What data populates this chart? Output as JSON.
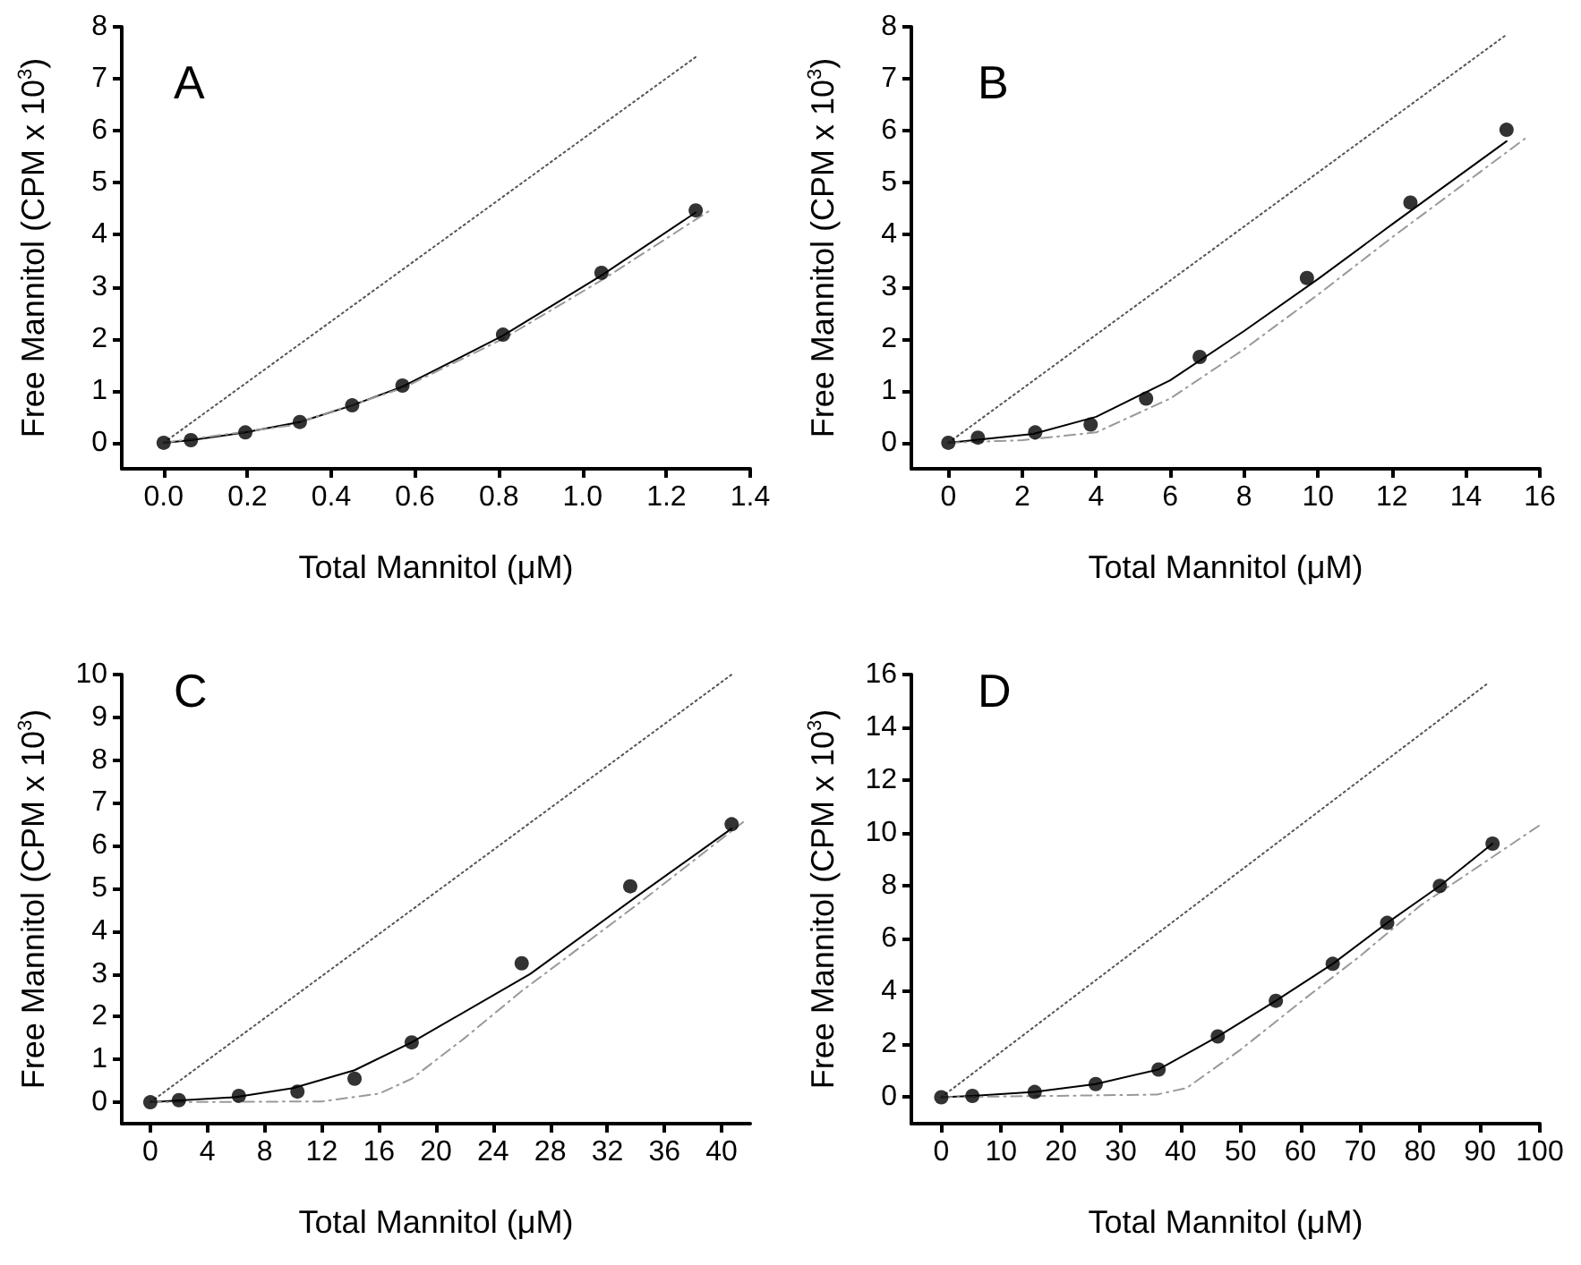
{
  "chart_data": [
    {
      "type": "scatter",
      "title": "A",
      "xlabel": "Total Mannitol (μM)",
      "ylabel": "Free Mannitol (CPM x 10$^{3}$)",
      "xlim": [
        -0.1,
        1.4
      ],
      "ylim": [
        -0.5,
        8
      ],
      "xticks": [
        {
          "value": 0,
          "label": "0.0"
        },
        0.2,
        0.4,
        0.6,
        0.8,
        {
          "value": 1,
          "label": "1.0"
        },
        1.2,
        1.4
      ],
      "yticks": [
        0,
        1,
        2,
        3,
        4,
        5,
        6,
        7,
        8
      ],
      "grid": false,
      "series": [
        {
          "marker": "circle",
          "color": "#000000",
          "x": [
            0,
            0.065,
            0.195,
            0.325,
            0.45,
            0.57,
            0.81,
            1.045,
            1.27
          ],
          "values": [
            0,
            0.05,
            0.2,
            0.4,
            0.72,
            1.1,
            2.08,
            3.27,
            4.47
          ]
        },
        {
          "type": "line",
          "line_style": "solid",
          "color": "#000000",
          "x": [
            0,
            0.065,
            0.195,
            0.325,
            0.45,
            0.57,
            0.81,
            1.045,
            1.27
          ],
          "values": [
            0,
            0.05,
            0.2,
            0.4,
            0.72,
            1.08,
            2.06,
            3.22,
            4.43
          ]
        },
        {
          "type": "line",
          "line_style": "dotted",
          "color": "#555555",
          "x": [
            0,
            1.27
          ],
          "values": [
            0,
            7.42
          ]
        },
        {
          "type": "line",
          "line_style": "dashed",
          "color": "#999999",
          "x": [
            0,
            0.3,
            0.57,
            0.81,
            1.05,
            1.3
          ],
          "values": [
            0,
            0.33,
            1.05,
            2.0,
            3.15,
            4.45
          ]
        }
      ]
    },
    {
      "type": "scatter",
      "title": "B",
      "xlabel": "Total Mannitol (μM)",
      "ylabel": "Free Mannitol (CPM x 10$^{3}$)",
      "xlim": [
        -1,
        16
      ],
      "ylim": [
        -0.5,
        8
      ],
      "xticks": [
        0,
        2,
        4,
        6,
        8,
        10,
        12,
        14,
        16
      ],
      "yticks": [
        0,
        1,
        2,
        3,
        4,
        5,
        6,
        7,
        8
      ],
      "grid": false,
      "series": [
        {
          "marker": "circle",
          "color": "#000000",
          "x": [
            0,
            0.8,
            2.35,
            3.85,
            5.35,
            6.8,
            9.7,
            12.5,
            15.1
          ],
          "values": [
            0,
            0.1,
            0.2,
            0.35,
            0.85,
            1.65,
            3.17,
            4.62,
            6.02
          ]
        },
        {
          "type": "line",
          "line_style": "solid",
          "color": "#000000",
          "x": [
            0,
            2.3,
            4,
            6,
            8,
            10,
            12,
            15.1
          ],
          "values": [
            0,
            0.17,
            0.5,
            1.2,
            2.15,
            3.15,
            4.2,
            5.8
          ]
        },
        {
          "type": "line",
          "line_style": "dotted",
          "color": "#555555",
          "x": [
            0,
            15.1
          ],
          "values": [
            0,
            7.85
          ]
        },
        {
          "type": "line",
          "line_style": "dashed",
          "color": "#999999",
          "x": [
            0,
            2,
            4,
            6,
            8,
            10,
            12,
            15.6
          ],
          "values": [
            0,
            0.05,
            0.2,
            0.85,
            1.8,
            2.85,
            3.95,
            5.85
          ]
        }
      ]
    },
    {
      "type": "scatter",
      "title": "C",
      "xlabel": "Total Mannitol (μM)",
      "ylabel": "Free Mannitol (CPM x 10$^{3}$)",
      "xlim": [
        -2,
        42
      ],
      "ylim": [
        -0.5,
        10
      ],
      "xticks": [
        0,
        4,
        8,
        12,
        16,
        20,
        24,
        28,
        32,
        36,
        40
      ],
      "yticks": [
        0,
        1,
        2,
        3,
        4,
        5,
        6,
        7,
        8,
        9,
        10
      ],
      "grid": false,
      "series": [
        {
          "marker": "circle",
          "color": "#000000",
          "x": [
            0,
            2,
            6.2,
            10.3,
            14.3,
            18.3,
            26,
            33.6,
            40.7
          ],
          "values": [
            0,
            0.05,
            0.15,
            0.25,
            0.55,
            1.4,
            3.25,
            5.05,
            6.5
          ]
        },
        {
          "type": "line",
          "line_style": "solid",
          "color": "#000000",
          "x": [
            0,
            6,
            10,
            14.3,
            18.3,
            26.6,
            34,
            40.7
          ],
          "values": [
            0,
            0.12,
            0.33,
            0.75,
            1.4,
            3.0,
            4.8,
            6.4
          ]
        },
        {
          "type": "line",
          "line_style": "dotted",
          "color": "#555555",
          "x": [
            0,
            40.7
          ],
          "values": [
            0,
            10
          ]
        },
        {
          "type": "line",
          "line_style": "dashed",
          "color": "#999999",
          "x": [
            0,
            12,
            16,
            18.3,
            22,
            26,
            34,
            41.5
          ],
          "values": [
            0,
            0.02,
            0.2,
            0.55,
            1.5,
            2.6,
            4.6,
            6.55
          ]
        }
      ]
    },
    {
      "type": "scatter",
      "title": "D",
      "xlabel": "Total Mannitol (μM)",
      "ylabel": "Free Mannitol (CPM x 10$^{3}$)",
      "xlim": [
        -5,
        100
      ],
      "ylim": [
        -1,
        16
      ],
      "xticks": [
        0,
        10,
        20,
        30,
        40,
        50,
        60,
        70,
        80,
        90,
        100
      ],
      "yticks": [
        0,
        2,
        4,
        6,
        8,
        10,
        12,
        14,
        16
      ],
      "grid": false,
      "series": [
        {
          "marker": "circle",
          "color": "#000000",
          "x": [
            0,
            5.2,
            15.6,
            25.8,
            36.3,
            46.2,
            55.9,
            65.4,
            74.5,
            83.3,
            92.1
          ],
          "values": [
            0,
            0.05,
            0.2,
            0.5,
            1.05,
            2.3,
            3.65,
            5.05,
            6.6,
            8.0,
            9.6
          ]
        },
        {
          "type": "line",
          "line_style": "solid",
          "color": "#000000",
          "x": [
            0,
            5.2,
            15.6,
            25.8,
            36.3,
            46.2,
            55.9,
            65.4,
            74.5,
            83.3,
            92.1
          ],
          "values": [
            0,
            0.05,
            0.2,
            0.5,
            1.05,
            2.3,
            3.65,
            5.05,
            6.6,
            8.0,
            9.6
          ]
        },
        {
          "type": "line",
          "line_style": "dotted",
          "color": "#555555",
          "x": [
            0,
            91.5
          ],
          "values": [
            0,
            15.7
          ]
        },
        {
          "type": "line",
          "line_style": "dashed",
          "color": "#999999",
          "x": [
            0,
            36,
            41,
            50,
            60,
            70,
            80,
            100
          ],
          "values": [
            0,
            0.1,
            0.35,
            1.8,
            3.6,
            5.35,
            7.25,
            10.3
          ]
        }
      ]
    }
  ]
}
